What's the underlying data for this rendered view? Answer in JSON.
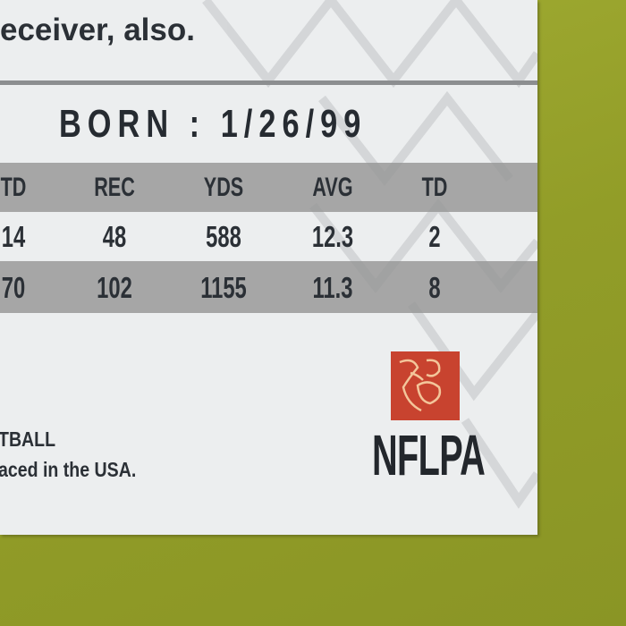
{
  "card": {
    "bio_fragment": "eceiver, also.",
    "born": "BORN : 1/26/99",
    "stats": {
      "headers": [
        "TD",
        "REC",
        "YDS",
        "AVG",
        "TD"
      ],
      "rows": [
        [
          "14",
          "48",
          "588",
          "12.3",
          "2"
        ],
        [
          "70",
          "102",
          "1155",
          "11.3",
          "8"
        ]
      ]
    },
    "footer_line1": "TBALL",
    "footer_line2": "aced in the USA.",
    "logo_text": "NFLPA"
  },
  "colors": {
    "background": "#9aa52f",
    "card": "#eceeef",
    "band": "#9a9a9a",
    "logo_red": "#c8432f",
    "text": "#2b3036"
  }
}
